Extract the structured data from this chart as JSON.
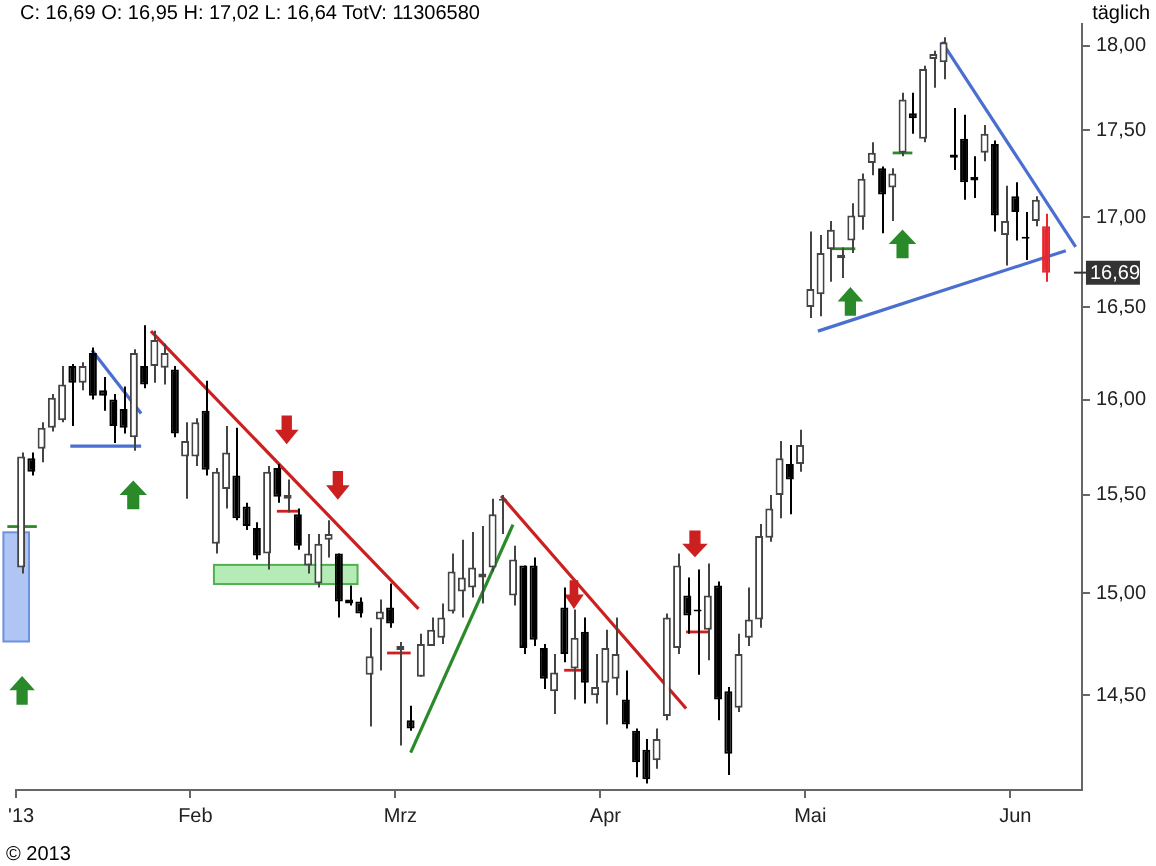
{
  "chart_data": {
    "type": "candlestick",
    "title": "C: 16,69 O: 16,95 H: 17,02 L: 16,64 TotV: 11306580",
    "subtitle": "täglich",
    "annotations": [
      "© 2013",
      {
        "text": "16,69",
        "y": 16.69
      }
    ],
    "categories": [
      "'13",
      null,
      null,
      null,
      null,
      null,
      null,
      null,
      null,
      null,
      null,
      null,
      null,
      null,
      null,
      null,
      null,
      "Feb",
      null,
      null,
      null,
      null,
      null,
      null,
      null,
      null,
      null,
      null,
      null,
      null,
      null,
      null,
      null,
      null,
      null,
      null,
      null,
      "Mrz",
      null,
      null,
      null,
      null,
      null,
      null,
      null,
      null,
      null,
      null,
      null,
      null,
      null,
      null,
      null,
      null,
      null,
      null,
      null,
      "Apr",
      null,
      null,
      null,
      null,
      null,
      null,
      null,
      null,
      null,
      null,
      null,
      null,
      null,
      null,
      null,
      null,
      null,
      null,
      null,
      "Mai",
      null,
      null,
      null,
      null,
      null,
      null,
      null,
      null,
      null,
      null,
      null,
      null,
      null,
      null,
      null,
      null,
      null,
      null,
      null,
      "Jun",
      null,
      null,
      null,
      null,
      null,
      null
    ],
    "ohlc": [
      [
        15.13,
        15.72,
        15.1,
        15.7
      ],
      [
        15.69,
        15.72,
        15.6,
        15.62
      ],
      [
        15.74,
        15.88,
        15.67,
        15.85
      ],
      [
        15.85,
        16.03,
        15.83,
        16.01
      ],
      [
        15.89,
        16.18,
        15.88,
        16.08
      ],
      [
        16.18,
        16.19,
        15.86,
        16.09
      ],
      [
        16.09,
        16.2,
        16.05,
        16.18
      ],
      [
        16.25,
        16.28,
        16.0,
        16.02
      ],
      [
        16.05,
        16.12,
        15.94,
        16.02
      ],
      [
        16.0,
        16.03,
        15.77,
        15.86
      ],
      [
        15.95,
        16.07,
        15.82,
        15.85
      ],
      [
        15.8,
        16.27,
        15.73,
        16.25
      ],
      [
        16.18,
        16.4,
        16.06,
        16.08
      ],
      [
        16.18,
        16.37,
        16.09,
        16.32
      ],
      [
        16.17,
        16.3,
        16.08,
        16.25
      ],
      [
        16.16,
        16.18,
        15.8,
        15.82
      ],
      [
        15.7,
        15.88,
        15.48,
        15.78
      ],
      [
        15.7,
        15.9,
        15.65,
        15.88
      ],
      [
        15.94,
        16.1,
        15.6,
        15.63
      ],
      [
        15.25,
        15.64,
        15.2,
        15.62
      ],
      [
        15.53,
        15.86,
        15.43,
        15.72
      ],
      [
        15.6,
        15.85,
        15.37,
        15.38
      ],
      [
        15.44,
        15.46,
        15.32,
        15.34
      ],
      [
        15.33,
        15.36,
        15.17,
        15.19
      ],
      [
        15.2,
        15.65,
        15.12,
        15.62
      ],
      [
        15.64,
        15.66,
        15.46,
        15.49
      ],
      [
        15.48,
        15.58,
        15.41,
        15.5
      ],
      [
        15.4,
        15.43,
        15.22,
        15.24
      ],
      [
        15.14,
        15.3,
        15.1,
        15.2
      ],
      [
        15.05,
        15.3,
        15.03,
        15.25
      ],
      [
        15.27,
        15.37,
        15.18,
        15.3
      ],
      [
        15.2,
        15.2,
        14.88,
        14.96
      ],
      [
        14.97,
        15.04,
        14.94,
        14.95
      ],
      [
        14.96,
        14.98,
        14.88,
        14.9
      ],
      [
        14.6,
        14.83,
        14.35,
        14.69
      ],
      [
        14.87,
        14.97,
        14.62,
        14.91
      ],
      [
        14.93,
        15.05,
        14.83,
        14.85
      ],
      [
        14.72,
        14.76,
        14.26,
        14.74
      ],
      [
        14.38,
        14.45,
        14.33,
        14.34
      ],
      [
        14.59,
        14.8,
        14.59,
        14.75
      ],
      [
        14.74,
        14.88,
        14.74,
        14.82
      ],
      [
        14.78,
        14.95,
        14.75,
        14.88
      ],
      [
        14.91,
        15.2,
        14.9,
        15.11
      ],
      [
        15.01,
        15.27,
        14.88,
        15.08
      ],
      [
        15.03,
        15.31,
        14.98,
        15.13
      ],
      [
        15.08,
        15.34,
        14.95,
        15.1
      ],
      [
        15.13,
        15.48,
        15.11,
        15.4
      ],
      [
        15.47,
        15.5,
        15.3,
        15.48
      ],
      [
        14.99,
        15.24,
        14.94,
        15.17
      ],
      [
        15.14,
        15.14,
        14.7,
        14.73
      ],
      [
        15.14,
        15.18,
        14.74,
        14.77
      ],
      [
        14.73,
        14.75,
        14.53,
        14.58
      ],
      [
        14.52,
        14.7,
        14.41,
        14.61
      ],
      [
        14.93,
        15.03,
        14.66,
        14.7
      ],
      [
        14.63,
        14.92,
        14.48,
        14.78
      ],
      [
        14.81,
        14.88,
        14.46,
        14.56
      ],
      [
        14.5,
        14.7,
        14.46,
        14.54
      ],
      [
        14.56,
        14.82,
        14.36,
        14.73
      ],
      [
        14.58,
        14.88,
        14.5,
        14.7
      ],
      [
        14.48,
        14.62,
        14.34,
        14.36
      ],
      [
        14.33,
        14.34,
        14.11,
        14.18
      ],
      [
        14.24,
        14.29,
        14.08,
        14.1
      ],
      [
        14.19,
        14.34,
        14.15,
        14.29
      ],
      [
        14.4,
        14.9,
        14.38,
        14.88
      ],
      [
        14.73,
        15.2,
        14.7,
        15.14
      ],
      [
        14.99,
        15.08,
        14.8,
        14.89
      ],
      [
        14.92,
        15.12,
        14.6,
        14.91
      ],
      [
        14.82,
        15.15,
        14.67,
        14.99
      ],
      [
        15.04,
        15.06,
        14.38,
        14.48
      ],
      [
        14.52,
        14.54,
        14.12,
        14.22
      ],
      [
        14.44,
        14.8,
        14.42,
        14.7
      ],
      [
        14.78,
        15.03,
        14.74,
        14.87
      ],
      [
        14.87,
        15.35,
        14.83,
        15.29
      ],
      [
        15.28,
        15.5,
        15.26,
        15.43
      ],
      [
        15.5,
        15.78,
        15.38,
        15.69
      ],
      [
        15.66,
        15.76,
        15.4,
        15.58
      ],
      [
        15.66,
        15.84,
        15.62,
        15.76
      ],
      [
        16.5,
        16.92,
        16.44,
        16.6
      ],
      [
        16.57,
        16.9,
        16.45,
        16.8
      ],
      [
        16.82,
        16.98,
        16.64,
        16.93
      ],
      [
        16.77,
        16.83,
        16.66,
        16.79
      ],
      [
        16.87,
        17.08,
        16.8,
        17.01
      ],
      [
        17.0,
        17.25,
        16.93,
        17.22
      ],
      [
        17.31,
        17.43,
        17.24,
        17.37
      ],
      [
        17.28,
        17.29,
        16.91,
        17.13
      ],
      [
        17.17,
        17.28,
        16.98,
        17.25
      ],
      [
        17.37,
        17.72,
        17.35,
        17.68
      ],
      [
        17.6,
        17.72,
        17.48,
        17.57
      ],
      [
        17.45,
        17.88,
        17.43,
        17.86
      ],
      [
        17.92,
        17.97,
        17.75,
        17.95
      ],
      [
        17.9,
        18.05,
        17.8,
        18.02
      ],
      [
        17.36,
        17.63,
        17.27,
        17.34
      ],
      [
        17.45,
        17.59,
        17.1,
        17.2
      ],
      [
        17.23,
        17.35,
        17.11,
        17.21
      ],
      [
        17.37,
        17.53,
        17.32,
        17.48
      ],
      [
        17.42,
        17.44,
        16.92,
        17.01
      ],
      [
        16.9,
        17.18,
        16.73,
        16.98
      ],
      [
        17.12,
        17.2,
        16.87,
        17.03
      ],
      [
        16.89,
        17.03,
        16.76,
        16.88
      ],
      [
        16.98,
        17.12,
        16.95,
        17.1
      ],
      [
        16.95,
        17.02,
        16.64,
        16.69
      ],
      null,
      null,
      null
    ],
    "colors": [
      "#444444",
      "#000000",
      "#444444",
      "#444444",
      "#444444",
      "#000000",
      "#444444",
      "#000000",
      "#000000",
      "#000000",
      "#000000",
      "#444444",
      "#000000",
      "#444444",
      "#444444",
      "#000000",
      "#444444",
      "#444444",
      "#000000",
      "#444444",
      "#444444",
      "#000000",
      "#000000",
      "#000000",
      "#444444",
      "#000000",
      "#444444",
      "#000000",
      "#444444",
      "#444444",
      "#444444",
      "#000000",
      "#000000",
      "#000000",
      "#444444",
      "#444444",
      "#000000",
      "#444444",
      "#000000",
      "#444444",
      "#444444",
      "#444444",
      "#444444",
      "#444444",
      "#444444",
      "#444444",
      "#444444",
      "#444444",
      "#444444",
      "#000000",
      "#000000",
      "#000000",
      "#444444",
      "#000000",
      "#444444",
      "#000000",
      "#444444",
      "#444444",
      "#444444",
      "#000000",
      "#000000",
      "#000000",
      "#444444",
      "#444444",
      "#444444",
      "#000000",
      "#000000",
      "#444444",
      "#000000",
      "#000000",
      "#444444",
      "#444444",
      "#444444",
      "#444444",
      "#444444",
      "#000000",
      "#444444",
      "#444444",
      "#444444",
      "#444444",
      "#444444",
      "#444444",
      "#444444",
      "#444444",
      "#000000",
      "#444444",
      "#444444",
      "#000000",
      "#444444",
      "#444444",
      "#444444",
      "#000000",
      "#000000",
      "#000000",
      "#444444",
      "#000000",
      "#444444",
      "#000000",
      "#000000",
      "#444444",
      "#e8262d",
      null,
      null,
      null
    ],
    "ylim": [
      14.05,
      18.13
    ],
    "log": true,
    "yticks": [
      {
        "value": 14.5,
        "label": "14,50"
      },
      {
        "value": 15,
        "label": "15,00"
      },
      {
        "value": 15.5,
        "label": "15,50"
      },
      {
        "value": 16,
        "label": "16,00"
      },
      {
        "value": 16.5,
        "label": "16,50"
      },
      {
        "value": 17,
        "label": "17,00"
      },
      {
        "value": 17.5,
        "label": "17,50"
      },
      {
        "value": 18,
        "label": "18,00"
      }
    ]
  }
}
